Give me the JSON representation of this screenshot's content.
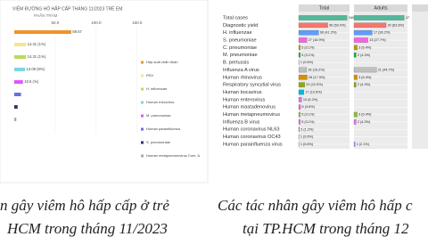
{
  "chart_data": [
    {
      "type": "bar",
      "orientation": "horizontal",
      "title": "VIÊM ĐƯỜNG HÔ HẤP CẤP THÁNG 11/2023 TRẺ EM",
      "xlabel": "PHẦN TRĂM",
      "xlim": [
        0,
        160
      ],
      "xticks": [
        {
          "value": 50,
          "label": "50.0"
        },
        {
          "value": 100,
          "label": "100.0"
        },
        {
          "value": 150,
          "label": "150.0"
        }
      ],
      "values": [
        69.57,
        14.31,
        14.31,
        13.09,
        10.6,
        8.2,
        4.1,
        2.5
      ],
      "value_labels": [
        "69.57",
        "14.31 (1%)",
        "14.31 (1%)",
        "13.09 (9%)",
        "10.6 (%)",
        null,
        null,
        null
      ],
      "colors": [
        "#f0932b",
        "#f6e58d",
        "#badc58",
        "#7ed6df",
        "#e056fd",
        "#686de0",
        "#30336b",
        "#95afc0"
      ],
      "legend": [
        "Hấy suất chẩn đoán",
        "RSV",
        "H. influenzae",
        "Human rhinovirus",
        "M. pneumoniae",
        "Human parainfluenza",
        "S. pneumoniae",
        "Human metapneumovirus Com. A"
      ]
    },
    {
      "type": "bar",
      "orientation": "horizontal",
      "title": "Total",
      "categories": [
        "Total cases",
        "Diagnostic yield",
        "H. influenzae",
        "S. pneumoniae",
        "C. pneumoniae",
        "M. pneumoniae",
        "B. pertussis",
        "Influenza A virus",
        "Human rhinovirus",
        "Respiratory syncytial virus",
        "Human bocavirus",
        "Human enterovirus",
        "Human mastadenovirus",
        "Human metapneumovirus",
        "Influenza B virus",
        "Human coronavirus NL63",
        "Human coronavirus OC43",
        "Human parainfluenza virus"
      ],
      "xlim": [
        0,
        168
      ],
      "values": [
        160,
        96,
        66,
        27,
        5,
        5,
        1,
        26,
        28,
        20,
        17,
        10,
        6,
        5,
        5,
        2,
        1,
        1
      ],
      "value_labels": [
        "160",
        "96 (60.0%)",
        "66 (41.2%)",
        "27 (16.9%)",
        "5 (3.1%)",
        "5 (3.1%)",
        "1 (0.6%)",
        "26 (16.2%)",
        "28 (17.5%)",
        "20 (12.5%)",
        "17 (10.6%)",
        "10 (6.2%)",
        "6 (3.8%)",
        "5 (3.1%)",
        "5 (3.1%)",
        "2 (1.2%)",
        "1 (0.6%)",
        "1 (0.6%)"
      ],
      "colors": [
        "#53b89a",
        "#f8766d",
        "#619cff",
        "#f564e3",
        "#b79f00",
        "#00ba38",
        "#00c1a3",
        "#c0c0c0",
        "#d39200",
        "#93aa00",
        "#00b9e3",
        "#db72fb",
        "#ff61c3",
        "#8fbf3f",
        "#e76bf3",
        "#a3a500",
        "#00bf7d",
        "#9590ff"
      ]
    },
    {
      "type": "bar",
      "orientation": "horizontal",
      "title": "Adults",
      "xlim": [
        0,
        50
      ],
      "values": [
        47,
        30,
        17,
        13,
        3,
        2,
        null,
        21,
        3,
        2,
        null,
        null,
        null,
        3,
        2,
        null,
        null,
        1
      ],
      "value_labels": [
        "47",
        "30 (63.8%)",
        "17 (36.2%)",
        "13 (27.7%)",
        "3 (6.4%)",
        "2 (4.3%)",
        null,
        "21 (44.7%)",
        "3 (6.4%)",
        "2 (4.3%)",
        null,
        null,
        null,
        "3 (6.4%)",
        "2 (4.3%)",
        null,
        null,
        "1 (2.1%)"
      ]
    }
  ],
  "captions": {
    "left": [
      "n gây viêm hô hấp cấp ở trẻ",
      "HCM trong tháng 11/2023"
    ],
    "right": [
      "Các tác nhân gây viêm hô hấp c",
      "tại TP.HCM trong tháng 12"
    ]
  }
}
